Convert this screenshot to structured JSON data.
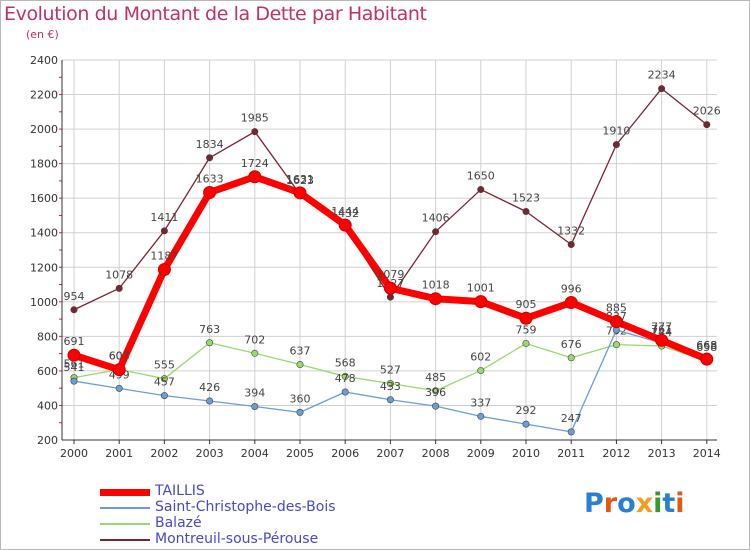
{
  "title": "Evolution du Montant de la Dette par Habitant",
  "unit": "(en €)",
  "logo": {
    "text": "Proxiti",
    "colors": [
      "#2a7fd0",
      "#e05a14",
      "#2a7fd0",
      "#f0a020",
      "#3a9a2a",
      "#2a7fd0",
      "#e05a14"
    ]
  },
  "chart_data": {
    "type": "line",
    "title": "Evolution du Montant de la Dette par Habitant",
    "ylabel": "(en €)",
    "x": [
      "2000",
      "2001",
      "2002",
      "2003",
      "2004",
      "2005",
      "2006",
      "2007",
      "2008",
      "2009",
      "2010",
      "2011",
      "2012",
      "2013",
      "2014"
    ],
    "ylim": [
      200,
      2400
    ],
    "yticks": [
      "200",
      "400",
      "600",
      "800",
      "1000",
      "1200",
      "1400",
      "1600",
      "1800",
      "2000",
      "2200",
      "2400"
    ],
    "grid": true,
    "legend_position": "bottom-left",
    "series": [
      {
        "name": "Montreuil-sous-Pérouse",
        "color": "#7a2430",
        "values": [
          954,
          1078,
          1411,
          1834,
          1985,
          1623,
          1432,
          1027,
          1406,
          1650,
          1523,
          1332,
          1910,
          2234,
          2026
        ],
        "labels": [
          "954",
          "1078",
          "1411",
          "1834",
          "1985",
          "1623",
          "1432",
          "1027",
          "1406",
          "1650",
          "1523",
          "1332",
          "1910",
          "2234",
          "2026"
        ]
      },
      {
        "name": "Balazé",
        "color": "#9ad870",
        "values": [
          561,
          608,
          555,
          763,
          702,
          637,
          568,
          527,
          485,
          602,
          759,
          676,
          752,
          744,
          658
        ],
        "labels": [
          "561",
          "608",
          "555",
          "763",
          "702",
          "637",
          "568",
          "527",
          "485",
          "602",
          "759",
          "676",
          "752",
          "744",
          "658"
        ]
      },
      {
        "name": "Saint-Christophe-des-Bois",
        "color": "#6a9ed4",
        "values": [
          541,
          499,
          457,
          426,
          394,
          360,
          478,
          433,
          396,
          337,
          292,
          247,
          837,
          761,
          668
        ],
        "labels": [
          "541",
          "499",
          "457",
          "426",
          "394",
          "360",
          "478",
          "433",
          "396",
          "337",
          "292",
          "247",
          "837",
          "761",
          "668"
        ]
      },
      {
        "name": "TAILLIS",
        "color": "#ff0000",
        "values": [
          691,
          607,
          1187,
          1633,
          1724,
          1631,
          1444,
          1079,
          1018,
          1001,
          905,
          996,
          885,
          777,
          668
        ],
        "labels": [
          "691",
          "607",
          "1187",
          "1633",
          "1724",
          "1631",
          "1444",
          "1079",
          "1018",
          "1001",
          "905",
          "996",
          "885",
          "777",
          "668"
        ]
      }
    ],
    "legend": [
      {
        "name": "TAILLIS",
        "color": "#ff0000"
      },
      {
        "name": "Saint-Christophe-des-Bois",
        "color": "#6a9ed4"
      },
      {
        "name": "Balazé",
        "color": "#9ad870"
      },
      {
        "name": "Montreuil-sous-Pérouse",
        "color": "#7a2430"
      }
    ]
  }
}
